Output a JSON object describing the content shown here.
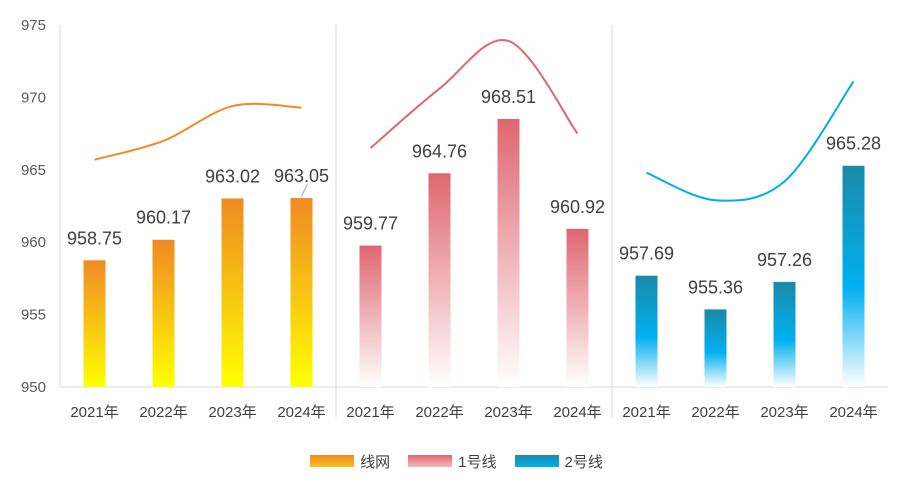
{
  "chart_data": {
    "type": "bar",
    "groups": [
      {
        "name": "线网",
        "categories": [
          "2021年",
          "2022年",
          "2023年",
          "2024年"
        ],
        "values": [
          958.75,
          960.17,
          963.02,
          963.05
        ],
        "line_values": [
          965.7,
          967.0,
          969.4,
          969.3
        ],
        "gradient": [
          "#f08a24",
          "#ffff00"
        ],
        "line_color": "#f08a24"
      },
      {
        "name": "1号线",
        "categories": [
          "2021年",
          "2022年",
          "2023年",
          "2024年"
        ],
        "values": [
          959.77,
          964.76,
          968.51,
          960.92
        ],
        "line_values": [
          966.5,
          970.6,
          973.9,
          967.5
        ],
        "gradient": [
          "#e06670",
          "#ffffff"
        ],
        "line_color": "#e06670"
      },
      {
        "name": "2号线",
        "categories": [
          "2021年",
          "2022年",
          "2023年",
          "2024年"
        ],
        "values": [
          957.69,
          955.36,
          957.26,
          965.28
        ],
        "line_values": [
          964.8,
          962.9,
          964.2,
          971.1
        ],
        "gradient": [
          "#1a8aa8",
          "#ffffff"
        ],
        "gradient_mid": "#00b0f0",
        "line_color": "#00aee8"
      }
    ],
    "value_labels": [
      "958.75",
      "960.17",
      "963.02",
      "963.05",
      "959.77",
      "964.76",
      "968.51",
      "960.92",
      "957.69",
      "955.36",
      "957.26",
      "965.28"
    ],
    "ylim": [
      950,
      975
    ],
    "yticks": [
      "950",
      "955",
      "960",
      "965",
      "970",
      "975"
    ],
    "legend": [
      "线网",
      "1号线",
      "2号线"
    ],
    "legend_position": "bottom",
    "grid": false
  }
}
